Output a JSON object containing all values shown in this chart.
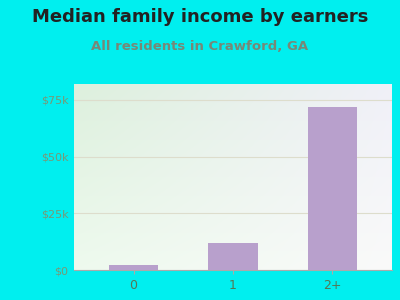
{
  "title": "Median family income by earners",
  "subtitle": "All residents in Crawford, GA",
  "categories": [
    "0",
    "1",
    "2+"
  ],
  "values": [
    2000,
    12000,
    72000
  ],
  "bar_color": "#b8a0cc",
  "outer_bg": "#00efef",
  "plot_bg_topleft": "#ddf0dd",
  "plot_bg_topright": "#f0f0f8",
  "plot_bg_bottom": "#edfaed",
  "title_color": "#222222",
  "subtitle_color": "#778877",
  "ytick_color": "#779977",
  "xtick_color": "#557755",
  "yticks": [
    0,
    25000,
    50000,
    75000
  ],
  "ytick_labels": [
    "$0",
    "$25k",
    "$50k",
    "$75k"
  ],
  "ylim": [
    0,
    82000
  ],
  "grid_color": "#ddddcc",
  "title_fontsize": 13,
  "subtitle_fontsize": 9.5,
  "bar_width": 0.5
}
